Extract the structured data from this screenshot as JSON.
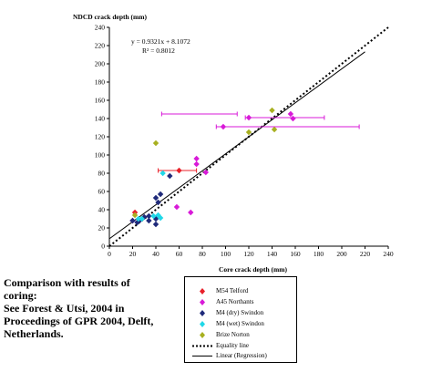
{
  "chart_data": {
    "type": "scatter",
    "ylabel": "NDCD crack depth (mm)",
    "xlabel": "Core crack depth (mm)",
    "xlim": [
      0,
      240
    ],
    "ylim": [
      0,
      240
    ],
    "xticks": [
      0,
      20,
      40,
      60,
      80,
      100,
      120,
      140,
      160,
      180,
      200,
      220,
      240
    ],
    "yticks": [
      0,
      20,
      40,
      60,
      80,
      100,
      120,
      140,
      160,
      180,
      200,
      220,
      240
    ],
    "grid": false,
    "annotations": [
      "y = 0.9321x + 8.1072",
      "R² = 0.8012"
    ],
    "series": [
      {
        "name": "M54 Telford",
        "color": "#e8202a",
        "marker": "diamond",
        "points": [
          [
            60,
            83
          ],
          [
            22,
            37
          ]
        ],
        "xerr": [
          [
            42,
            75
          ]
        ]
      },
      {
        "name": "A45 Northants",
        "color": "#d81ad8",
        "marker": "diamond",
        "points": [
          [
            98,
            131
          ],
          [
            120,
            141
          ],
          [
            156,
            145
          ],
          [
            158,
            140
          ],
          [
            75,
            96
          ],
          [
            75,
            90
          ],
          [
            83,
            81
          ],
          [
            70,
            37
          ],
          [
            58,
            43
          ],
          [
            20,
            28
          ]
        ],
        "xerr": [
          [
            92,
            215
          ],
          [
            117,
            185
          ],
          [
            45,
            110
          ]
        ]
      },
      {
        "name": "M4 (dry) Swindon",
        "color": "#1f2a7a",
        "marker": "diamond",
        "points": [
          [
            52,
            77
          ],
          [
            40,
            53
          ],
          [
            44,
            57
          ],
          [
            42,
            48
          ],
          [
            40,
            30
          ],
          [
            40,
            24
          ],
          [
            34,
            33
          ],
          [
            34,
            28
          ],
          [
            30,
            32
          ],
          [
            26,
            28
          ],
          [
            24,
            26
          ],
          [
            20,
            28
          ]
        ],
        "xerr": []
      },
      {
        "name": "M4 (wet) Swindon",
        "color": "#20d8e8",
        "marker": "diamond",
        "points": [
          [
            46,
            80
          ],
          [
            42,
            34
          ],
          [
            44,
            31
          ],
          [
            38,
            33
          ],
          [
            28,
            30
          ],
          [
            25,
            30
          ]
        ],
        "xerr": []
      },
      {
        "name": "Brize Norton",
        "color": "#a8b020",
        "marker": "diamond",
        "points": [
          [
            40,
            113
          ],
          [
            140,
            149
          ],
          [
            142,
            128
          ],
          [
            120,
            125
          ],
          [
            22,
            34
          ]
        ],
        "xerr": []
      }
    ],
    "lines": [
      {
        "name": "Equality line",
        "style": "dotted",
        "x": [
          0,
          240
        ],
        "y": [
          0,
          240
        ]
      },
      {
        "name": "Linear (Regression)",
        "style": "solid",
        "slope": 0.9321,
        "intercept": 8.1072,
        "x": [
          0,
          220
        ]
      }
    ]
  },
  "caption": {
    "lines": [
      "Comparison with results of",
      "coring:",
      "See Forest & Utsi, 2004 in",
      "Proceedings of GPR 2004, Delft,",
      "Netherlands."
    ]
  }
}
